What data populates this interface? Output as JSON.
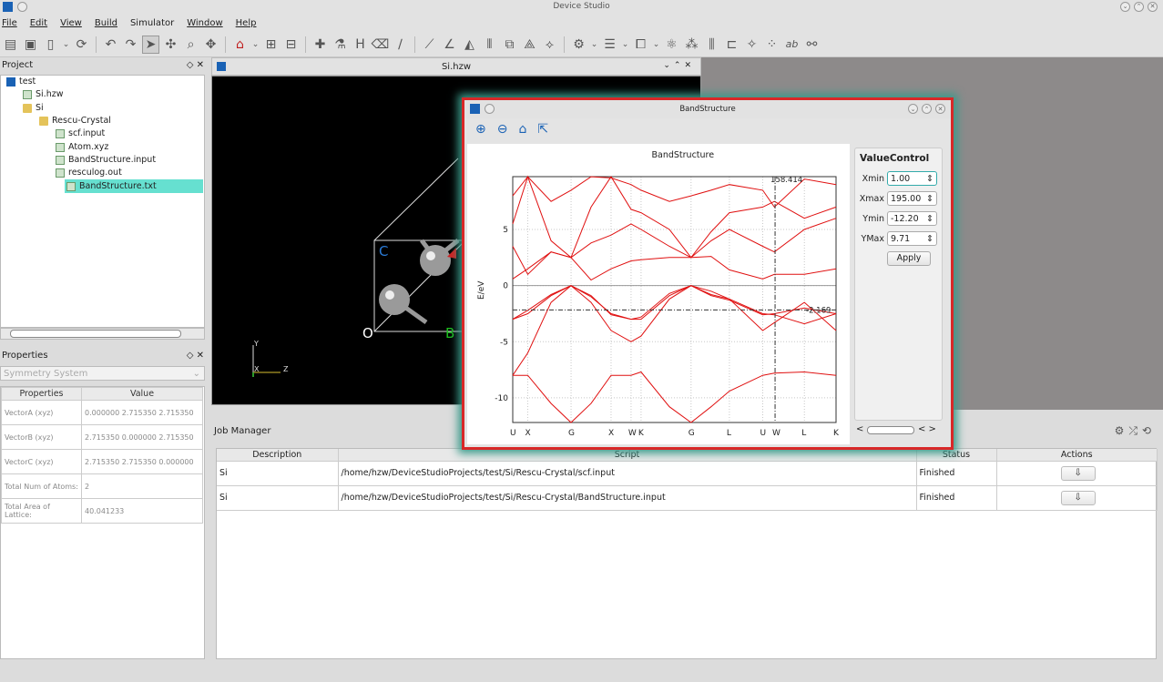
{
  "app": {
    "title": "Device Studio"
  },
  "menu": [
    "File",
    "Edit",
    "View",
    "Build",
    "Simulator",
    "Window",
    "Help"
  ],
  "project": {
    "title": "Project",
    "tree": [
      {
        "label": "test",
        "depth": 0,
        "icon": "project-icon"
      },
      {
        "label": "Si.hzw",
        "depth": 1,
        "icon": "hzw-file-icon"
      },
      {
        "label": "Si",
        "depth": 1,
        "icon": "folder-icon"
      },
      {
        "label": "Rescu-Crystal",
        "depth": 2,
        "icon": "folder-icon"
      },
      {
        "label": "scf.input",
        "depth": 3,
        "icon": "input-file-icon"
      },
      {
        "label": "Atom.xyz",
        "depth": 3,
        "icon": "input-file-icon"
      },
      {
        "label": "BandStructure.input",
        "depth": 3,
        "icon": "input-file-icon"
      },
      {
        "label": "resculog.out",
        "depth": 3,
        "icon": "input-file-icon"
      },
      {
        "label": "BandStructure.txt",
        "depth": 3,
        "icon": "data-file-icon",
        "selected": true
      }
    ]
  },
  "properties": {
    "title": "Properties",
    "dropdown": "Symmetry System",
    "col1": "Properties",
    "col2": "Value",
    "rows": [
      {
        "k": "VectorA (xyz)",
        "v": "0.000000 2.715350 2.715350"
      },
      {
        "k": "VectorB (xyz)",
        "v": "2.715350 0.000000 2.715350"
      },
      {
        "k": "VectorC (xyz)",
        "v": "2.715350 2.715350 0.000000"
      },
      {
        "k": "Total Num of Atoms:",
        "v": "2"
      },
      {
        "k": "Total Area of Lattice:",
        "v": "40.041233"
      }
    ]
  },
  "viewer": {
    "title": "Si.hzw",
    "labels": {
      "c": "C",
      "o": "O",
      "b": "B",
      "y": "Y",
      "x": "X",
      "z": "Z"
    }
  },
  "jobs": {
    "title": "Job Manager",
    "headers": [
      "Description",
      "Script",
      "Status",
      "Actions"
    ],
    "rows": [
      {
        "desc": "Si",
        "script": "/home/hzw/DeviceStudioProjects/test/Si/Rescu-Crystal/scf.input",
        "status": "Finished"
      },
      {
        "desc": "Si",
        "script": "/home/hzw/DeviceStudioProjects/test/Si/Rescu-Crystal/BandStructure.input",
        "status": "Finished"
      }
    ]
  },
  "band": {
    "window_title": "BandStructure",
    "plot_title": "BandStructure",
    "control": {
      "title": "ValueControl",
      "xmin_label": "Xmin",
      "xmin": "1.00",
      "xmax_label": "Xmax",
      "xmax": "195.00",
      "ymin_label": "Ymin",
      "ymin": "-12.20",
      "ymax_label": "YMax",
      "ymax": "9.71",
      "apply": "Apply"
    },
    "cursor_x_label": "158.414",
    "cursor_y_label": "-2.169",
    "line_color": "#e01010"
  },
  "chart_data": {
    "type": "line",
    "title": "BandStructure",
    "xlabel": "",
    "ylabel": "E/eV",
    "xlim": [
      1,
      195
    ],
    "ylim": [
      -12.2,
      9.71
    ],
    "x_ticks": [
      {
        "label": "U",
        "x": 1
      },
      {
        "label": "X",
        "x": 10
      },
      {
        "label": "G",
        "x": 36
      },
      {
        "label": "X",
        "x": 60
      },
      {
        "label": "W",
        "x": 72
      },
      {
        "label": "K",
        "x": 78
      },
      {
        "label": "G",
        "x": 108
      },
      {
        "label": "L",
        "x": 131
      },
      {
        "label": "U",
        "x": 151
      },
      {
        "label": "W",
        "x": 158.4
      },
      {
        "label": "L",
        "x": 176
      },
      {
        "label": "K",
        "x": 195
      }
    ],
    "y_ticks": [
      -10,
      -5,
      0,
      5
    ],
    "grid": true,
    "cursor": {
      "x": 158.414,
      "y": -2.169
    },
    "series": [
      {
        "values": [
          [
            1,
            -8.0
          ],
          [
            10,
            -8.0
          ],
          [
            24,
            -10.5
          ],
          [
            36,
            -12.2
          ],
          [
            48,
            -10.5
          ],
          [
            60,
            -8.0
          ],
          [
            72,
            -8.0
          ],
          [
            78,
            -7.7
          ],
          [
            95,
            -10.8
          ],
          [
            108,
            -12.2
          ],
          [
            120,
            -10.8
          ],
          [
            131,
            -9.4
          ],
          [
            151,
            -8.0
          ],
          [
            158,
            -7.8
          ],
          [
            176,
            -7.7
          ],
          [
            195,
            -8.0
          ]
        ]
      },
      {
        "values": [
          [
            1,
            -8.0
          ],
          [
            10,
            -6.0
          ],
          [
            24,
            -1.5
          ],
          [
            36,
            0.0
          ],
          [
            48,
            -1.5
          ],
          [
            60,
            -4.0
          ],
          [
            72,
            -5.0
          ],
          [
            78,
            -4.5
          ],
          [
            95,
            -1.2
          ],
          [
            108,
            0.0
          ],
          [
            120,
            -0.8
          ],
          [
            131,
            -1.2
          ],
          [
            151,
            -4.0
          ],
          [
            158,
            -3.3
          ],
          [
            176,
            -1.5
          ],
          [
            195,
            -4.0
          ]
        ]
      },
      {
        "values": [
          [
            1,
            -3.0
          ],
          [
            10,
            -2.2
          ],
          [
            24,
            -0.8
          ],
          [
            36,
            0.0
          ],
          [
            48,
            -1.0
          ],
          [
            60,
            -2.5
          ],
          [
            72,
            -3.0
          ],
          [
            78,
            -2.8
          ],
          [
            95,
            -0.7
          ],
          [
            108,
            0.0
          ],
          [
            120,
            -0.9
          ],
          [
            131,
            -1.3
          ],
          [
            151,
            -2.6
          ],
          [
            158,
            -2.5
          ],
          [
            176,
            -2.0
          ],
          [
            195,
            -2.5
          ]
        ]
      },
      {
        "values": [
          [
            1,
            -3.0
          ],
          [
            10,
            -2.5
          ],
          [
            24,
            -0.9
          ],
          [
            36,
            0.0
          ],
          [
            48,
            -0.9
          ],
          [
            60,
            -2.6
          ],
          [
            72,
            -3.0
          ],
          [
            78,
            -3.0
          ],
          [
            95,
            -0.9
          ],
          [
            108,
            0.0
          ],
          [
            120,
            -0.5
          ],
          [
            131,
            -1.2
          ],
          [
            151,
            -2.5
          ],
          [
            158,
            -2.6
          ],
          [
            176,
            -3.4
          ],
          [
            195,
            -2.5
          ]
        ]
      },
      {
        "values": [
          [
            1,
            0.6
          ],
          [
            10,
            1.5
          ],
          [
            24,
            3.0
          ],
          [
            36,
            2.5
          ],
          [
            48,
            0.5
          ],
          [
            60,
            1.5
          ],
          [
            72,
            2.2
          ],
          [
            78,
            2.3
          ],
          [
            95,
            2.5
          ],
          [
            108,
            2.5
          ],
          [
            120,
            2.6
          ],
          [
            131,
            1.4
          ],
          [
            151,
            0.6
          ],
          [
            158,
            1.0
          ],
          [
            176,
            1.0
          ],
          [
            195,
            1.5
          ]
        ]
      },
      {
        "values": [
          [
            1,
            3.5
          ],
          [
            10,
            1.0
          ],
          [
            24,
            3.0
          ],
          [
            36,
            2.5
          ],
          [
            48,
            3.8
          ],
          [
            60,
            4.5
          ],
          [
            72,
            5.5
          ],
          [
            78,
            5.0
          ],
          [
            95,
            3.5
          ],
          [
            108,
            2.5
          ],
          [
            120,
            4.0
          ],
          [
            131,
            5.0
          ],
          [
            151,
            3.5
          ],
          [
            158,
            3.0
          ],
          [
            176,
            5.0
          ],
          [
            195,
            6.0
          ]
        ]
      },
      {
        "values": [
          [
            1,
            5.5
          ],
          [
            10,
            9.7
          ],
          [
            24,
            4.0
          ],
          [
            36,
            2.5
          ],
          [
            48,
            7.0
          ],
          [
            60,
            9.7
          ],
          [
            72,
            6.8
          ],
          [
            78,
            6.5
          ],
          [
            95,
            5.0
          ],
          [
            108,
            2.5
          ],
          [
            120,
            4.8
          ],
          [
            131,
            6.5
          ],
          [
            151,
            7.0
          ],
          [
            158,
            7.5
          ],
          [
            176,
            6.0
          ],
          [
            195,
            7.0
          ]
        ]
      },
      {
        "values": [
          [
            1,
            8.0
          ],
          [
            10,
            9.7
          ],
          [
            24,
            7.5
          ],
          [
            36,
            8.5
          ],
          [
            48,
            9.7
          ],
          [
            60,
            9.6
          ],
          [
            72,
            9.0
          ],
          [
            78,
            8.5
          ],
          [
            95,
            7.5
          ],
          [
            108,
            8.0
          ],
          [
            120,
            8.5
          ],
          [
            131,
            9.0
          ],
          [
            151,
            8.5
          ],
          [
            158,
            7.0
          ],
          [
            176,
            9.5
          ],
          [
            195,
            9.0
          ]
        ]
      }
    ]
  }
}
